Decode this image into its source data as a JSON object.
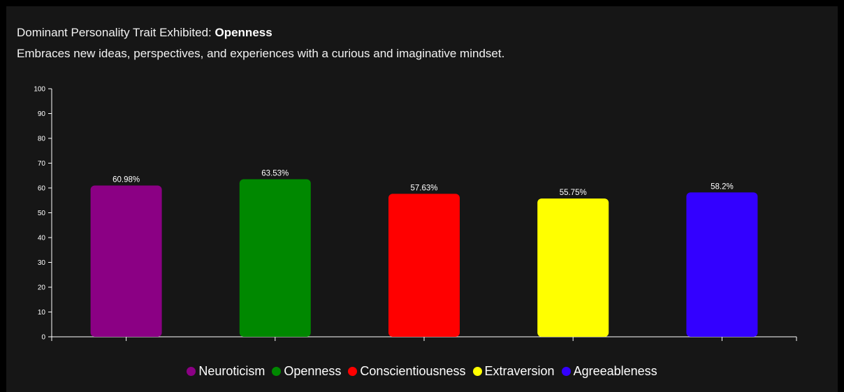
{
  "header": {
    "prefix": "Dominant Personality Trait Exhibited:",
    "trait": "Openness",
    "description": "Embraces new ideas, perspectives, and experiences with a curious and imaginative mindset."
  },
  "chart_data": {
    "type": "bar",
    "categories": [
      "Neuroticism",
      "Openness",
      "Conscientiousness",
      "Extraversion",
      "Agreeableness"
    ],
    "values": [
      60.98,
      63.53,
      57.63,
      55.75,
      58.2
    ],
    "value_labels": [
      "60.98%",
      "63.53%",
      "57.63%",
      "55.75%",
      "58.2%"
    ],
    "colors": [
      "#8b0084",
      "#008800",
      "#ff0000",
      "#ffff00",
      "#3300ff"
    ],
    "ylim": [
      0,
      100
    ],
    "yticks": [
      "0",
      "10",
      "20",
      "30",
      "40",
      "50",
      "60",
      "70",
      "80",
      "90",
      "100"
    ],
    "xlabel": "",
    "ylabel": "",
    "grid": false,
    "legend_position": "bottom-center"
  }
}
